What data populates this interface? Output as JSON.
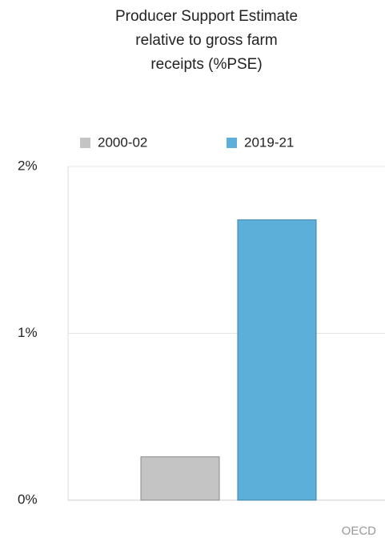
{
  "chart_data": {
    "type": "bar",
    "title": "Producer Support Estimate relative to gross farm receipts (%PSE)",
    "categories": [
      null
    ],
    "series": [
      {
        "name": "2000-02",
        "color": "#c4c4c4",
        "values": [
          0.26
        ]
      },
      {
        "name": "2019-21",
        "color": "#5bafd9",
        "values": [
          1.68
        ]
      }
    ],
    "ylim": [
      0,
      2
    ],
    "yticks": [
      {
        "value": 0,
        "label": "0%"
      },
      {
        "value": 1,
        "label": "1%"
      },
      {
        "value": 2,
        "label": "2%"
      }
    ],
    "grid": true,
    "legend": "top",
    "source": "OECD"
  }
}
